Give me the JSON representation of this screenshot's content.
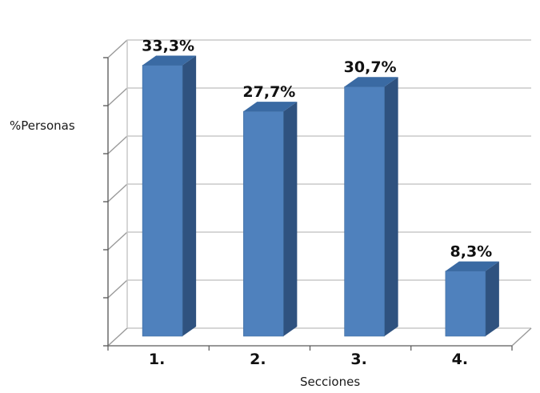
{
  "chart_data": {
    "type": "bar",
    "categories": [
      "1.",
      "2.",
      "3.",
      "4."
    ],
    "values": [
      33.3,
      27.7,
      30.7,
      8.3
    ],
    "data_labels": [
      "33,3%",
      "27,7%",
      "30,7%",
      "8,3%"
    ],
    "xlabel": "Secciones",
    "ylabel": "%Personas",
    "ylim": [
      0,
      35
    ],
    "grid": true,
    "three_d": true,
    "colors": {
      "bar_front": "#4f81bd",
      "bar_side": "#2f527f",
      "bar_top": "#3a6aa3"
    }
  }
}
